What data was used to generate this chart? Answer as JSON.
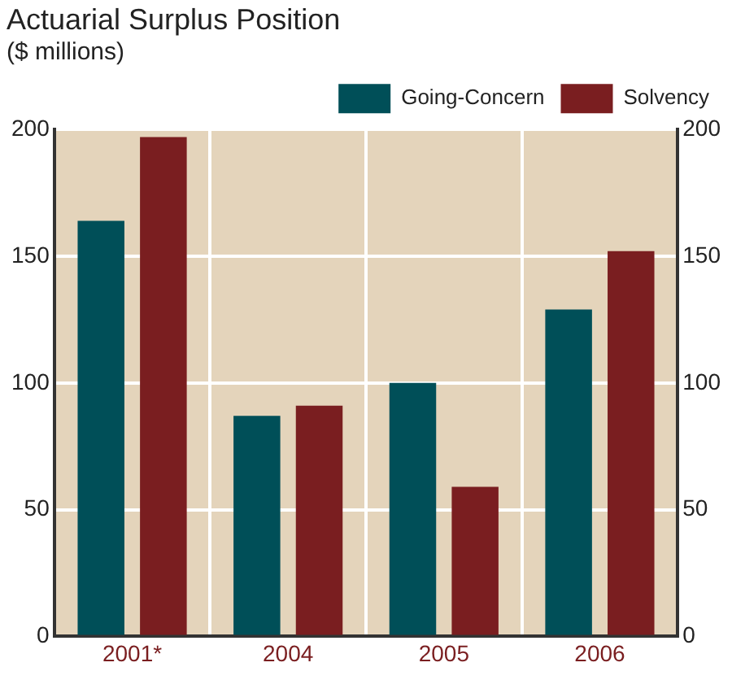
{
  "chart_data": {
    "type": "bar",
    "title": "Actuarial Surplus Position",
    "subtitle": "($ millions)",
    "categories": [
      "2001*",
      "2004",
      "2005",
      "2006"
    ],
    "series": [
      {
        "name": "Going-Concern",
        "color": "#004f58",
        "values": [
          164,
          87,
          100,
          129
        ]
      },
      {
        "name": "Solvency",
        "color": "#7a1e20",
        "values": [
          197,
          91,
          59,
          152
        ]
      }
    ],
    "ylim": [
      0,
      200
    ],
    "yticks": [
      0,
      50,
      100,
      150,
      200
    ],
    "y2lim": [
      0,
      200
    ],
    "y2ticks": [
      0,
      50,
      100,
      150,
      200
    ],
    "grid": true,
    "legend": "top right"
  }
}
